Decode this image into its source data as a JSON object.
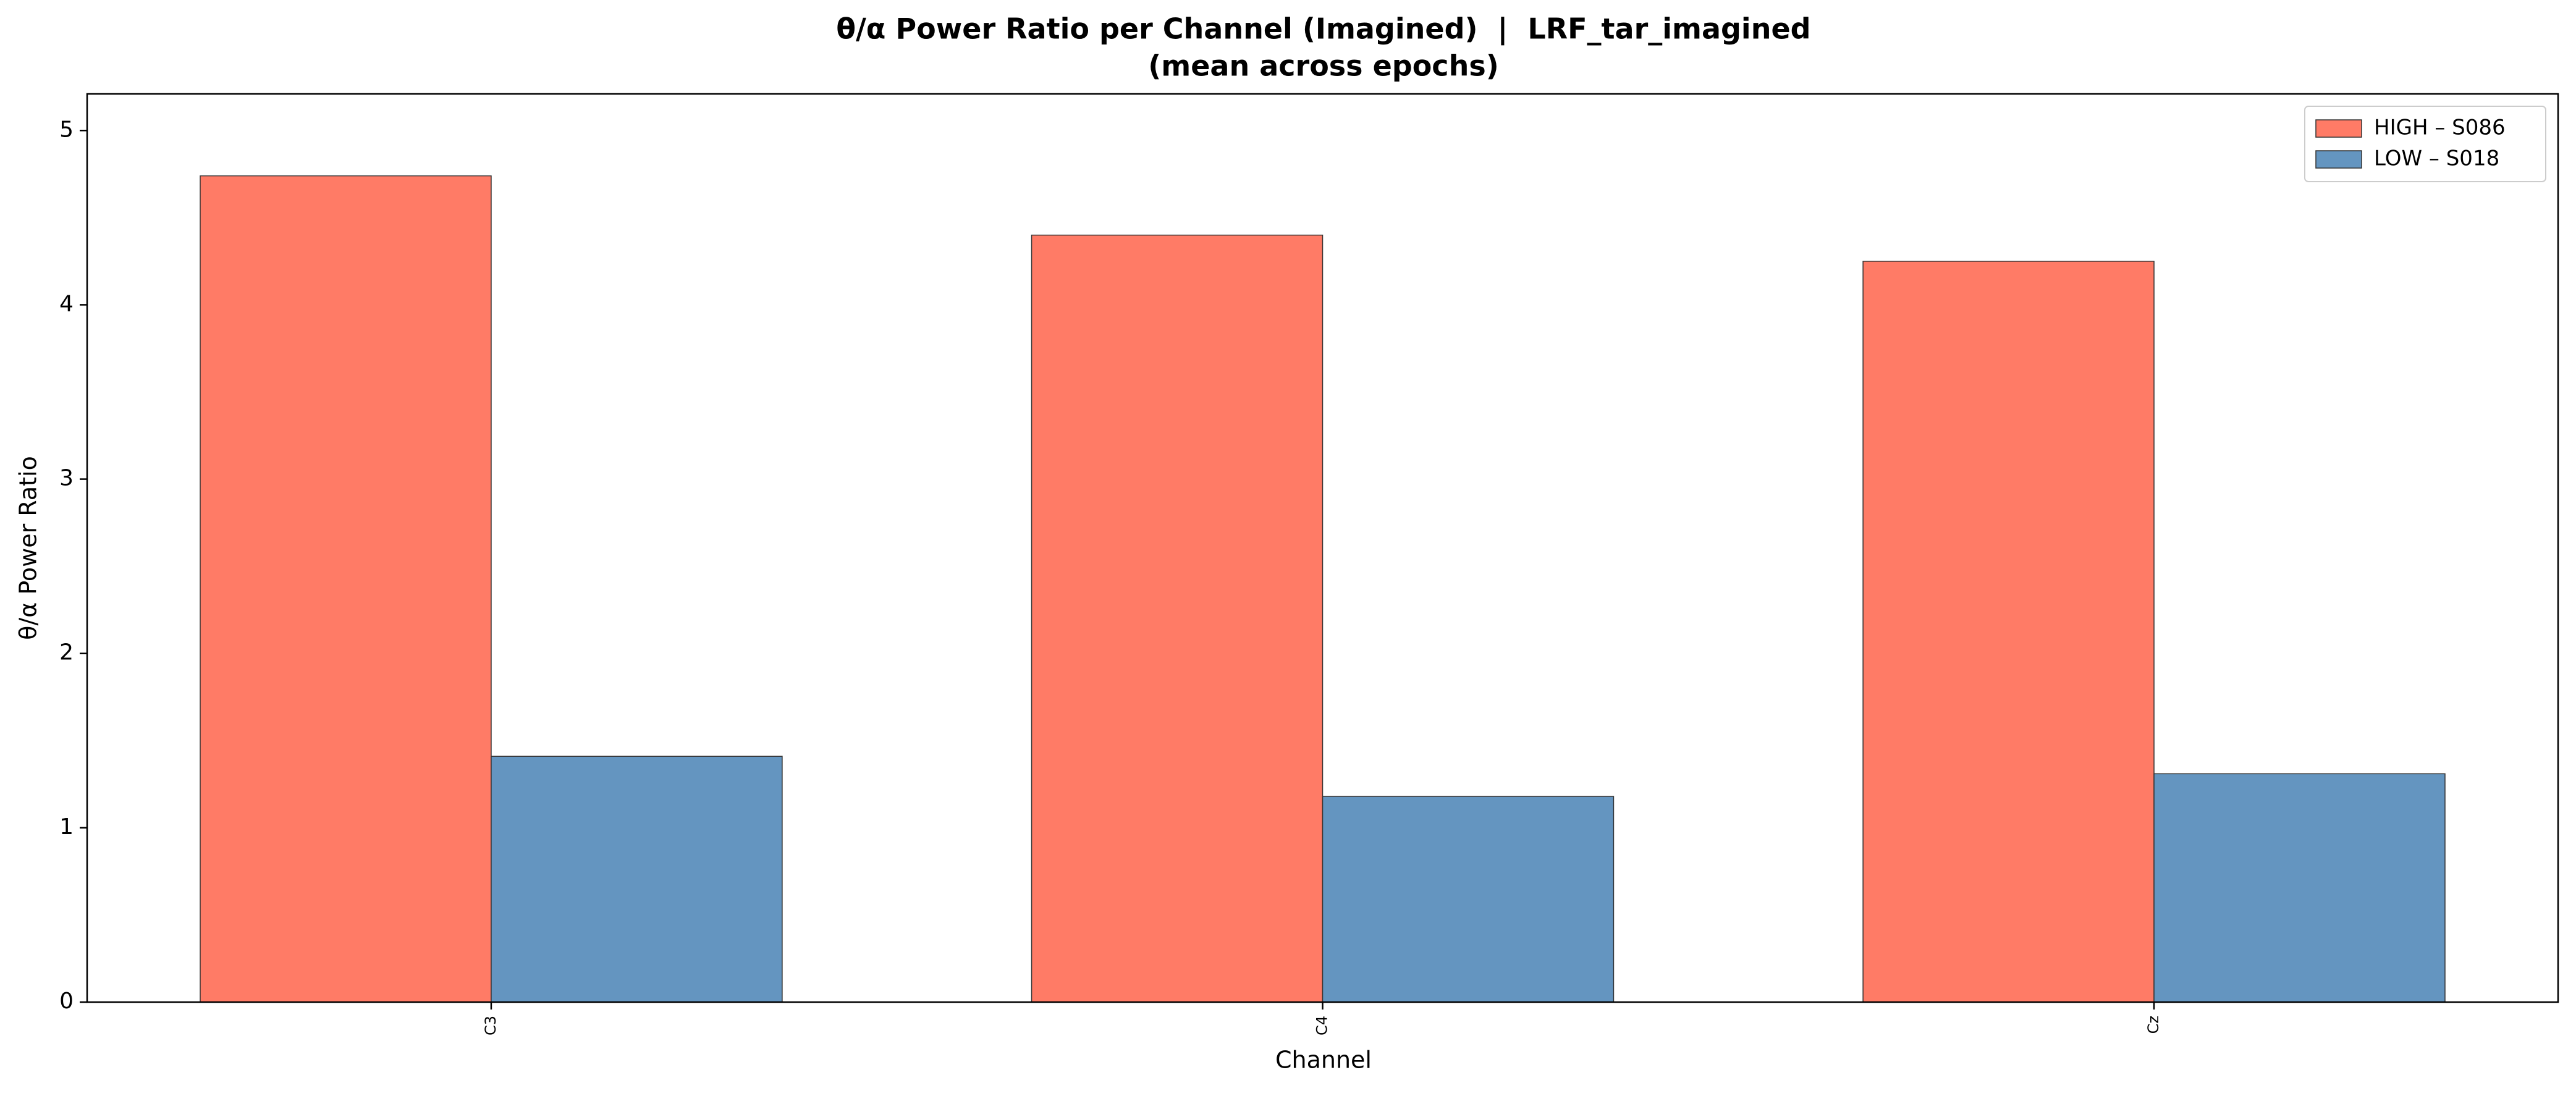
{
  "chart_data": {
    "type": "bar",
    "title": "θ/α Power Ratio per Channel (Imagined)  |  LRF_tar_imagined",
    "subtitle": "(mean across epochs)",
    "x_label": "Channel",
    "y_label": "θ/α Power Ratio",
    "categories": [
      "C3",
      "C4",
      "Cz"
    ],
    "series": [
      {
        "name": "HIGH – S086",
        "color": "#ff7b66",
        "values": [
          4.74,
          4.4,
          4.25
        ]
      },
      {
        "name": "LOW – S018",
        "color": "#6495c0",
        "values": [
          1.41,
          1.18,
          1.31
        ]
      }
    ],
    "ylim": [
      0,
      5.21
    ],
    "yticks": [
      0,
      1,
      2,
      3,
      4,
      5
    ],
    "legend": "upper right"
  }
}
